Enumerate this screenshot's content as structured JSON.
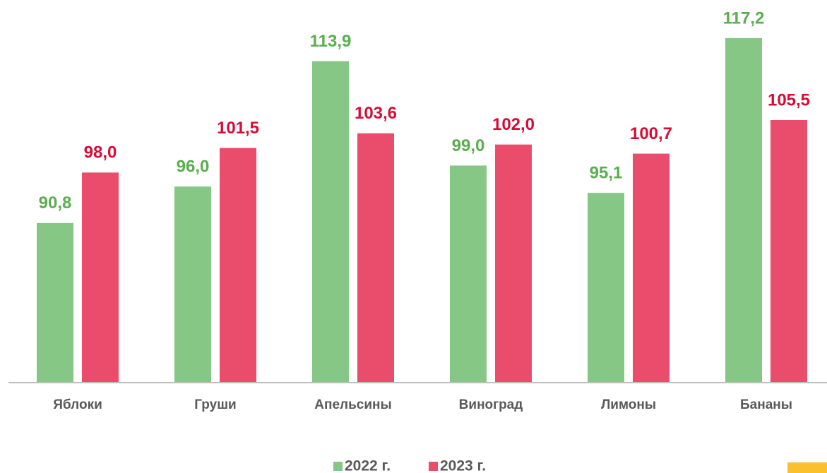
{
  "chart_data": {
    "type": "bar",
    "categories": [
      "Яблоки",
      "Груши",
      "Апельсины",
      "Виноград",
      "Лимоны",
      "Бананы"
    ],
    "series": [
      {
        "name": "2022 г.",
        "color": "#86c785",
        "label_color": "#5aae4f",
        "values": [
          90.8,
          96.0,
          113.9,
          99.0,
          95.1,
          117.2
        ],
        "value_labels": [
          "90,8",
          "96,0",
          "113,9",
          "99,0",
          "95,1",
          "117,2"
        ]
      },
      {
        "name": "2023 г.",
        "color": "#ea4d6b",
        "label_color": "#d90b36",
        "values": [
          98.0,
          101.5,
          103.6,
          102.0,
          100.7,
          105.5
        ],
        "value_labels": [
          "98,0",
          "101,5",
          "103,6",
          "102,0",
          "100,7",
          "105,5"
        ]
      }
    ],
    "ylim": [
      68,
      122
    ],
    "legend": "bottom"
  }
}
